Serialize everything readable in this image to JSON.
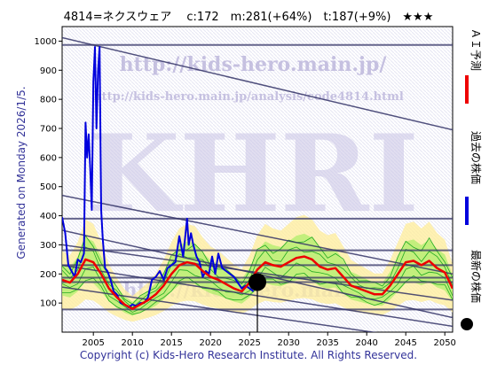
{
  "header": {
    "title": "4814=ネクスウェア　 c:172　m:281(+64%)　t:187(+9%)　★★★"
  },
  "side_label": "Generated on Monday 2026/1/5.",
  "footer": "Copyright (c) Kids-Hero Research Institute. All Rights Reserved.",
  "watermarks": {
    "big": "KHRI",
    "url1": "http://kids-hero.main.jp/",
    "url2": "http://kids-hero.main.jp/analysis/code4814.html",
    "url3": "http://kids-hero.main.jp"
  },
  "colors": {
    "price": "#0000dd",
    "forecast": "#ee0000",
    "band_fill": "#aaee66",
    "band_line": "#22aa22",
    "yellow_band": "#ffee99",
    "hline": "#333366",
    "trend": "#333366",
    "marker": "#000000"
  },
  "chart_data": {
    "type": "line",
    "xlim": [
      2001,
      2051
    ],
    "ylim": [
      0,
      1050
    ],
    "xticks": [
      2005,
      2010,
      2015,
      2020,
      2025,
      2030,
      2035,
      2040,
      2045,
      2050
    ],
    "yticks": [
      100,
      200,
      300,
      400,
      500,
      600,
      700,
      800,
      900,
      1000
    ],
    "horizontal_levels": [
      987,
      390,
      281,
      230,
      187,
      172,
      78
    ],
    "current_point": {
      "x": 2026.0,
      "y": 172
    },
    "trend_lines": [
      {
        "x": [
          2001,
          2051
        ],
        "y": [
          1012,
          695
        ]
      },
      {
        "x": [
          2001,
          2051
        ],
        "y": [
          470,
          200
        ]
      },
      {
        "x": [
          2001,
          2051
        ],
        "y": [
          350,
          50
        ]
      },
      {
        "x": [
          2001,
          2051
        ],
        "y": [
          300,
          110
        ]
      },
      {
        "x": [
          2001,
          2051
        ],
        "y": [
          230,
          20
        ]
      },
      {
        "x": [
          2001,
          2051
        ],
        "y": [
          155,
          -40
        ]
      }
    ],
    "series": [
      {
        "name": "過去の株価",
        "x": [
          2001.0,
          2001.4,
          2001.8,
          2002.2,
          2002.6,
          2003.0,
          2003.4,
          2003.8,
          2004.0,
          2004.2,
          2004.4,
          2004.6,
          2004.8,
          2005.0,
          2005.2,
          2005.4,
          2005.6,
          2005.8,
          2006.0,
          2006.2,
          2006.5,
          2006.8,
          2007.2,
          2007.6,
          2008.0,
          2008.5,
          2009.0,
          2009.5,
          2010.0,
          2010.5,
          2011.0,
          2011.5,
          2012.0,
          2012.5,
          2013.0,
          2013.5,
          2014.0,
          2014.5,
          2015.0,
          2015.5,
          2016.0,
          2016.5,
          2017.0,
          2017.2,
          2017.5,
          2017.8,
          2018.2,
          2018.6,
          2019.0,
          2019.4,
          2019.8,
          2020.2,
          2020.6,
          2021.0,
          2021.5,
          2022.0,
          2022.5,
          2023.0,
          2023.5,
          2024.0,
          2024.5,
          2025.0,
          2025.5
        ],
        "y": [
          395,
          340,
          230,
          210,
          190,
          250,
          240,
          270,
          720,
          600,
          680,
          560,
          420,
          860,
          980,
          700,
          900,
          980,
          420,
          320,
          220,
          210,
          180,
          140,
          130,
          100,
          95,
          85,
          95,
          90,
          100,
          100,
          120,
          180,
          190,
          210,
          180,
          220,
          230,
          240,
          330,
          260,
          390,
          300,
          340,
          300,
          260,
          240,
          190,
          210,
          200,
          260,
          200,
          270,
          220,
          210,
          200,
          190,
          170,
          150,
          160,
          150,
          140
        ]
      },
      {
        "name": "ＡＩ予測",
        "x": [
          2001.0,
          2002.0,
          2003.0,
          2004.0,
          2005.0,
          2006.0,
          2007.0,
          2008.0,
          2009.0,
          2010.0,
          2011.0,
          2012.0,
          2013.0,
          2014.0,
          2015.0,
          2016.0,
          2017.0,
          2018.0,
          2019.0,
          2020.0,
          2021.0,
          2022.0,
          2023.0,
          2024.0,
          2025.0,
          2026.0,
          2027.0,
          2028.0,
          2029.0,
          2030.0,
          2031.0,
          2032.0,
          2033.0,
          2034.0,
          2035.0,
          2036.0,
          2037.0,
          2038.0,
          2039.0,
          2040.0,
          2041.0,
          2042.0,
          2043.0,
          2044.0,
          2045.0,
          2046.0,
          2047.0,
          2048.0,
          2049.0,
          2050.0,
          2051.0
        ],
        "y": [
          180,
          170,
          200,
          250,
          240,
          200,
          150,
          120,
          95,
          80,
          95,
          110,
          130,
          160,
          200,
          230,
          240,
          235,
          210,
          190,
          180,
          165,
          150,
          140,
          170,
          215,
          240,
          230,
          225,
          240,
          255,
          260,
          250,
          225,
          215,
          220,
          190,
          160,
          150,
          140,
          130,
          130,
          160,
          200,
          240,
          245,
          230,
          245,
          220,
          205,
          150
        ]
      }
    ],
    "legend": [
      {
        "label": "ＡＩ予測",
        "color": "#ee0000",
        "marker": "line"
      },
      {
        "label": "過去の株価",
        "color": "#0000dd",
        "marker": "line"
      },
      {
        "label": "最新の株価",
        "color": "#000000",
        "marker": "circle"
      }
    ]
  }
}
